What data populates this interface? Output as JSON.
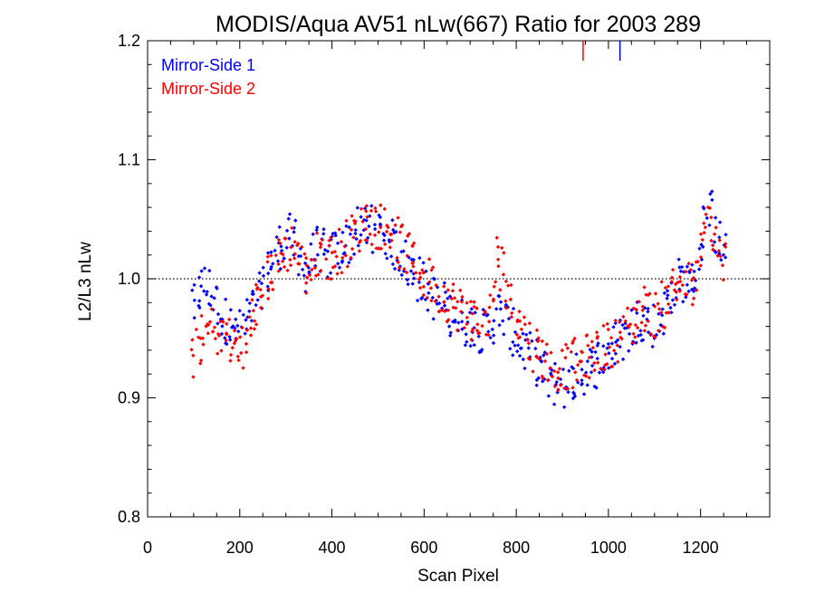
{
  "chart_data": {
    "type": "scatter",
    "title": "MODIS/Aqua AV51 nLw(667) Ratio for 2003 289",
    "xlabel": "Scan Pixel",
    "ylabel": "L2/L3 nLw",
    "xlim": [
      0,
      1350
    ],
    "ylim": [
      0.8,
      1.2
    ],
    "x_ticks": [
      0,
      200,
      400,
      600,
      800,
      1000,
      1200
    ],
    "x_tick_labels": [
      "0",
      "200",
      "400",
      "600",
      "800",
      "1000",
      "1200"
    ],
    "y_ticks": [
      0.8,
      0.9,
      1.0,
      1.1,
      1.2
    ],
    "y_tick_labels": [
      "0.8",
      "0.9",
      "1.0",
      "1.1",
      "1.2"
    ],
    "reference_line": {
      "y": 1.0,
      "style": "dotted"
    },
    "legend_position": "top-left",
    "series": [
      {
        "name": "Mirror-Side 1",
        "color": "#0000ff",
        "x": [
          100,
          110,
          120,
          130,
          140,
          150,
          160,
          170,
          180,
          190,
          200,
          210,
          220,
          230,
          240,
          250,
          260,
          270,
          280,
          290,
          300,
          310,
          320,
          330,
          340,
          350,
          360,
          370,
          380,
          390,
          400,
          410,
          420,
          430,
          440,
          450,
          460,
          470,
          480,
          490,
          500,
          510,
          520,
          530,
          540,
          550,
          560,
          570,
          580,
          590,
          600,
          610,
          620,
          630,
          640,
          650,
          660,
          670,
          680,
          690,
          700,
          710,
          720,
          730,
          740,
          750,
          760,
          770,
          780,
          790,
          800,
          810,
          820,
          830,
          840,
          850,
          860,
          870,
          880,
          890,
          900,
          910,
          920,
          930,
          940,
          950,
          960,
          970,
          980,
          990,
          1000,
          1010,
          1020,
          1030,
          1040,
          1050,
          1060,
          1070,
          1080,
          1090,
          1100,
          1110,
          1120,
          1130,
          1140,
          1150,
          1160,
          1170,
          1180,
          1190,
          1200,
          1210,
          1220,
          1230,
          1240,
          1250
        ],
        "y": [
          0.975,
          0.988,
          0.995,
          0.992,
          0.985,
          0.978,
          0.97,
          0.965,
          0.96,
          0.958,
          0.955,
          0.958,
          0.965,
          0.975,
          0.985,
          0.995,
          1.005,
          1.015,
          1.022,
          1.028,
          1.032,
          1.035,
          1.03,
          1.018,
          1.008,
          1.012,
          1.02,
          1.025,
          1.022,
          1.018,
          1.02,
          1.022,
          1.026,
          1.028,
          1.032,
          1.036,
          1.04,
          1.042,
          1.044,
          1.042,
          1.04,
          1.038,
          1.035,
          1.03,
          1.025,
          1.02,
          1.015,
          1.01,
          1.005,
          1.0,
          0.995,
          0.99,
          0.985,
          0.98,
          0.978,
          0.975,
          0.972,
          0.968,
          0.965,
          0.963,
          0.962,
          0.96,
          0.958,
          0.955,
          0.958,
          0.965,
          0.972,
          0.968,
          0.962,
          0.955,
          0.95,
          0.945,
          0.94,
          0.935,
          0.93,
          0.925,
          0.92,
          0.915,
          0.912,
          0.91,
          0.91,
          0.912,
          0.915,
          0.918,
          0.92,
          0.922,
          0.925,
          0.928,
          0.932,
          0.935,
          0.938,
          0.942,
          0.946,
          0.95,
          0.955,
          0.96,
          0.965,
          0.968,
          0.966,
          0.963,
          0.962,
          0.965,
          0.972,
          0.98,
          0.99,
          0.998,
          1.0,
          0.998,
          0.995,
          1.005,
          1.025,
          1.045,
          1.055,
          1.04,
          1.03,
          1.025
        ]
      },
      {
        "name": "Mirror-Side 2",
        "color": "#ff0000",
        "x": [
          100,
          110,
          120,
          130,
          140,
          150,
          160,
          170,
          180,
          190,
          200,
          210,
          220,
          230,
          240,
          250,
          260,
          270,
          280,
          290,
          300,
          310,
          320,
          330,
          340,
          350,
          360,
          370,
          380,
          390,
          400,
          410,
          420,
          430,
          440,
          450,
          460,
          470,
          480,
          490,
          500,
          510,
          520,
          530,
          540,
          550,
          560,
          570,
          580,
          590,
          600,
          610,
          620,
          630,
          640,
          650,
          660,
          670,
          680,
          690,
          700,
          710,
          720,
          730,
          740,
          750,
          760,
          770,
          780,
          790,
          800,
          810,
          820,
          830,
          840,
          850,
          860,
          870,
          880,
          890,
          900,
          910,
          920,
          930,
          940,
          950,
          960,
          970,
          980,
          990,
          1000,
          1010,
          1020,
          1030,
          1040,
          1050,
          1060,
          1070,
          1080,
          1090,
          1100,
          1110,
          1120,
          1130,
          1140,
          1150,
          1160,
          1170,
          1180,
          1190,
          1200,
          1210,
          1220,
          1230,
          1240,
          1250
        ],
        "y": [
          0.93,
          0.945,
          0.95,
          0.955,
          0.958,
          0.955,
          0.95,
          0.952,
          0.948,
          0.945,
          0.94,
          0.945,
          0.955,
          0.968,
          0.978,
          0.99,
          1.0,
          1.008,
          1.015,
          1.02,
          1.025,
          1.028,
          1.025,
          1.015,
          1.005,
          1.01,
          1.015,
          1.02,
          1.022,
          1.02,
          1.018,
          1.02,
          1.025,
          1.03,
          1.035,
          1.038,
          1.042,
          1.046,
          1.05,
          1.048,
          1.045,
          1.044,
          1.042,
          1.038,
          1.032,
          1.028,
          1.022,
          1.018,
          1.012,
          1.008,
          1.002,
          0.998,
          0.994,
          0.99,
          0.986,
          0.984,
          0.98,
          0.976,
          0.974,
          0.97,
          0.968,
          0.966,
          0.964,
          0.96,
          0.97,
          0.985,
          1.02,
          1.01,
          0.99,
          0.978,
          0.97,
          0.962,
          0.955,
          0.948,
          0.942,
          0.938,
          0.934,
          0.93,
          0.928,
          0.926,
          0.925,
          0.926,
          0.928,
          0.93,
          0.932,
          0.934,
          0.936,
          0.938,
          0.94,
          0.942,
          0.944,
          0.946,
          0.95,
          0.955,
          0.958,
          0.962,
          0.966,
          0.972,
          0.975,
          0.972,
          0.97,
          0.972,
          0.978,
          0.985,
          0.992,
          0.995,
          0.998,
          0.995,
          0.99,
          1.0,
          1.02,
          1.04,
          1.05,
          1.035,
          1.02,
          1.015
        ]
      }
    ],
    "clipped_marks_above_ylim": [
      {
        "series": "Mirror-Side 2",
        "x": 945
      },
      {
        "series": "Mirror-Side 1",
        "x": 1025
      }
    ]
  }
}
